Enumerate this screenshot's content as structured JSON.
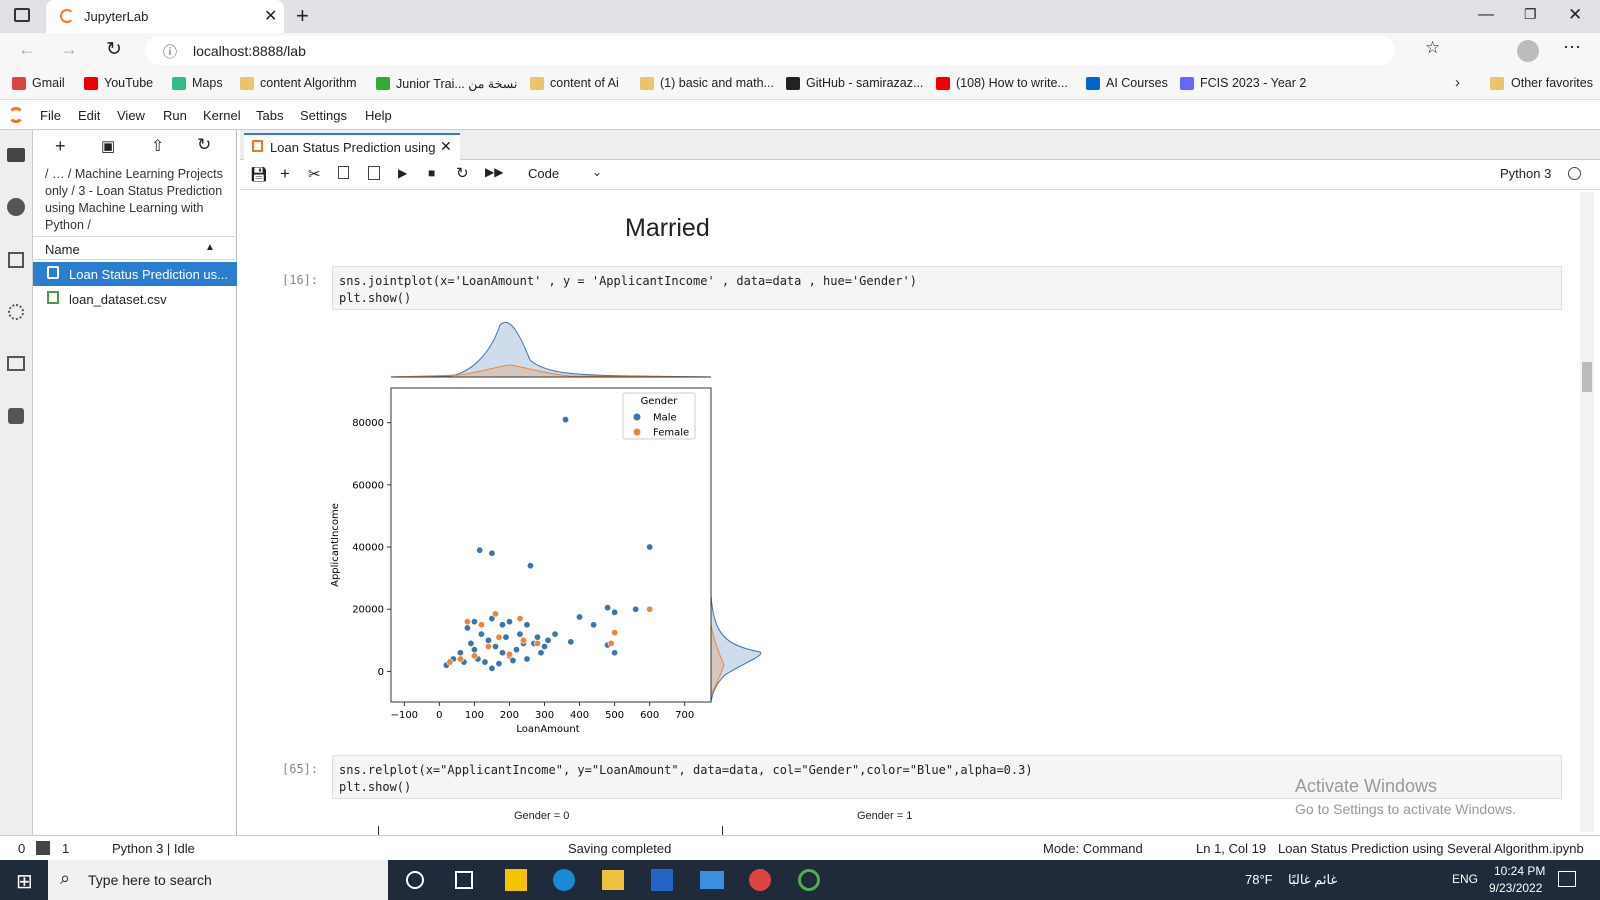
{
  "browser": {
    "tab_title": "JupyterLab",
    "url": "localhost:8888/lab",
    "bookmarks": [
      "Gmail",
      "YouTube",
      "Maps",
      "content Algorithm",
      "Junior Trai... نسخة من",
      "content of Ai",
      "(1) basic and math...",
      "GitHub - samirazaz...",
      "(108) How to write...",
      "AI Courses",
      "FCIS 2023 - Year 2"
    ],
    "other_favorites": "Other favorites"
  },
  "menu": [
    "File",
    "Edit",
    "View",
    "Run",
    "Kernel",
    "Tabs",
    "Settings",
    "Help"
  ],
  "file_browser": {
    "breadcrumb": "/ … / Machine Learning Projects only / 3 - Loan Status Prediction using Machine Learning with Python /",
    "column": "Name",
    "files": [
      "Loan Status Prediction us...",
      "loan_dataset.csv"
    ]
  },
  "notebook": {
    "tab": "Loan Status Prediction using",
    "cell_type": "Code",
    "kernel": "Python 3",
    "heading": "Married",
    "cells": [
      {
        "prompt": "[16]:",
        "code": [
          "sns.jointplot(x='LoanAmount' , y = 'ApplicantIncome' , data=data , hue='Gender')",
          "plt.show()"
        ]
      },
      {
        "prompt": "[65]:",
        "code": [
          "sns.relplot(x=\"ApplicantIncome\", y=\"LoanAmount\", data=data, col=\"Gender\",color=\"Blue\",alpha=0.3)",
          "plt.show()"
        ]
      }
    ],
    "facet_titles": [
      "Gender = 0",
      "Gender = 1"
    ]
  },
  "chart_data": {
    "type": "scatter",
    "x_label": "LoanAmount",
    "y_label": "ApplicantIncome",
    "legend_title": "Gender",
    "legend": "upper right",
    "xlim": [
      -138,
      775
    ],
    "ylim": [
      -9840,
      91150
    ],
    "xticks": [
      {
        "value": -100,
        "label": "−100"
      },
      0,
      100,
      200,
      300,
      400,
      500,
      600,
      700
    ],
    "yticks": [
      0,
      20000,
      40000,
      60000,
      80000
    ],
    "series": [
      {
        "name": "Male",
        "color": "#3a75b0",
        "x": [
          360,
          115,
          150,
          260,
          600,
          480,
          500,
          400,
          560,
          440,
          375,
          480,
          500,
          330,
          310,
          270,
          250,
          200,
          180,
          150,
          100,
          80,
          120,
          140,
          160,
          180,
          200,
          220,
          240,
          90,
          60,
          40,
          20,
          70,
          110,
          130,
          170,
          210,
          250,
          290,
          300,
          280,
          230,
          190,
          100,
          150
        ],
        "values": [
          81000,
          39000,
          38000,
          34000,
          40000,
          20500,
          19000,
          17500,
          20000,
          15000,
          9500,
          8500,
          6000,
          12000,
          10000,
          9000,
          15000,
          16000,
          15000,
          17000,
          16000,
          14000,
          12000,
          10000,
          8000,
          6000,
          5000,
          7000,
          9000,
          9000,
          6000,
          4000,
          2000,
          3000,
          4000,
          3000,
          2500,
          3500,
          4000,
          6000,
          8000,
          11000,
          12000,
          11000,
          7000,
          1000
        ]
      },
      {
        "name": "Female",
        "color": "#ef8636",
        "x": [
          600,
          160,
          120,
          80,
          230,
          500,
          280,
          170,
          140,
          100,
          60,
          30,
          200,
          240,
          490
        ],
        "values": [
          20000,
          18500,
          15000,
          16000,
          17000,
          12500,
          9000,
          11000,
          8000,
          5000,
          4000,
          3000,
          5500,
          10000,
          9000
        ]
      }
    ]
  },
  "status_bar": {
    "left_count": "0",
    "terminal_count": "1",
    "kernel_state": "Python 3 | Idle",
    "message": "Saving completed",
    "mode": "Mode: Command",
    "position": "Ln 1, Col 19",
    "file": "Loan Status Prediction using Several Algorithm.ipynb"
  },
  "watermark": {
    "title": "Activate Windows",
    "subtitle": "Go to Settings to activate Windows."
  },
  "taskbar": {
    "search": "Type here to search",
    "temperature": "78°F",
    "weather": "غائم غالبًا",
    "language": "ENG",
    "time": "10:24 PM",
    "date": "9/23/2022"
  }
}
